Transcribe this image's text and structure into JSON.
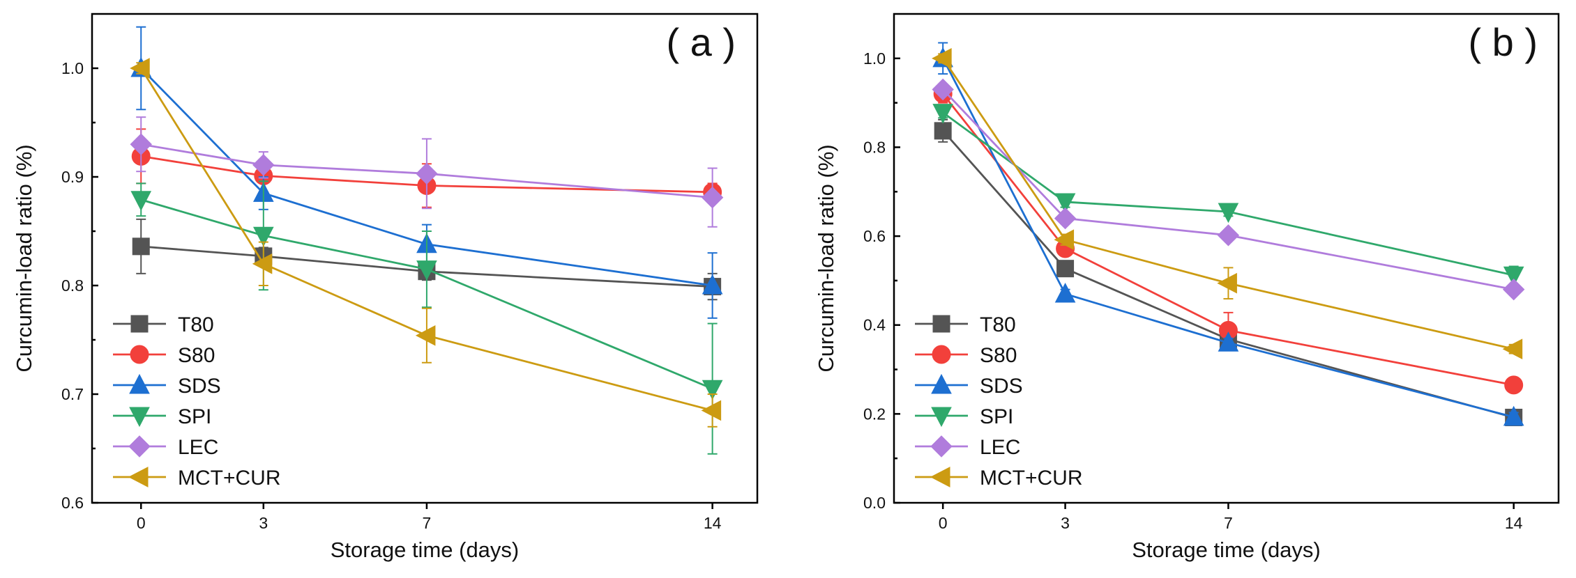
{
  "colors": {
    "T80": "#545454",
    "S80": "#f2403b",
    "SDS": "#1d6fd1",
    "SPI": "#2fa86b",
    "LEC": "#b07cdc",
    "MCT+CUR": "#cc9b12"
  },
  "chart_data": [
    {
      "panel": "( a )",
      "type": "line",
      "xlabel": "Storage time (days)",
      "ylabel": "Curcumin-load ratio (%)",
      "x": [
        0,
        3,
        7,
        14
      ],
      "xticks": [
        "0",
        "3",
        "7",
        "14"
      ],
      "xlim": [
        -1.2,
        15.1
      ],
      "ylim": [
        0.6,
        1.05
      ],
      "yticks": [
        "0.6",
        "0.7",
        "0.8",
        "0.9",
        "1.0"
      ],
      "ytick_values": [
        0.6,
        0.7,
        0.8,
        0.9,
        1.0
      ],
      "legend_position": "bottom-left",
      "series": [
        {
          "name": "T80",
          "marker": "square",
          "values": [
            0.836,
            0.827,
            0.813,
            0.799
          ],
          "errors": [
            0.025,
            0.008,
            0.008,
            0.012
          ]
        },
        {
          "name": "S80",
          "marker": "circle",
          "values": [
            0.919,
            0.901,
            0.892,
            0.886
          ],
          "errors": [
            0.025,
            0.015,
            0.02,
            0.008
          ]
        },
        {
          "name": "SDS",
          "marker": "triangle-up",
          "values": [
            1.0,
            0.885,
            0.838,
            0.8
          ],
          "errors": [
            0.038,
            0.015,
            0.018,
            0.03
          ]
        },
        {
          "name": "SPI",
          "marker": "triangle-down",
          "values": [
            0.879,
            0.846,
            0.815,
            0.705
          ],
          "errors": [
            0.015,
            0.05,
            0.035,
            0.06
          ]
        },
        {
          "name": "LEC",
          "marker": "diamond",
          "values": [
            0.93,
            0.911,
            0.903,
            0.881
          ],
          "errors": [
            0.025,
            0.012,
            0.032,
            0.027
          ]
        },
        {
          "name": "MCT+CUR",
          "marker": "triangle-left",
          "values": [
            1.0,
            0.82,
            0.754,
            0.685
          ],
          "errors": [
            0.005,
            0.02,
            0.025,
            0.015
          ]
        }
      ]
    },
    {
      "panel": "( b )",
      "type": "line",
      "xlabel": "Storage time (days)",
      "ylabel": "Curcumin-load ratio (%)",
      "x": [
        0,
        3,
        7,
        14
      ],
      "xticks": [
        "0",
        "3",
        "7",
        "14"
      ],
      "xlim": [
        -1.2,
        15.1
      ],
      "ylim": [
        0.0,
        1.1
      ],
      "yticks": [
        "0.0",
        "0.2",
        "0.4",
        "0.6",
        "0.8",
        "1.0"
      ],
      "ytick_values": [
        0.0,
        0.2,
        0.4,
        0.6,
        0.8,
        1.0
      ],
      "legend_position": "bottom-left",
      "series": [
        {
          "name": "T80",
          "marker": "square",
          "values": [
            0.837,
            0.527,
            0.368,
            0.192
          ],
          "errors": [
            0.025,
            0.012,
            0.01,
            0.01
          ]
        },
        {
          "name": "S80",
          "marker": "circle",
          "values": [
            0.92,
            0.572,
            0.388,
            0.265
          ],
          "errors": [
            0.02,
            0.012,
            0.04,
            0.01
          ]
        },
        {
          "name": "SDS",
          "marker": "triangle-up",
          "values": [
            1.0,
            0.47,
            0.36,
            0.193
          ],
          "errors": [
            0.035,
            0.01,
            0.01,
            0.01
          ]
        },
        {
          "name": "SPI",
          "marker": "triangle-down",
          "values": [
            0.878,
            0.677,
            0.655,
            0.512
          ],
          "errors": [
            0.012,
            0.012,
            0.01,
            0.02
          ]
        },
        {
          "name": "LEC",
          "marker": "diamond",
          "values": [
            0.93,
            0.64,
            0.602,
            0.48
          ],
          "errors": [
            0.01,
            0.012,
            0.01,
            0.01
          ]
        },
        {
          "name": "MCT+CUR",
          "marker": "triangle-left",
          "values": [
            1.0,
            0.592,
            0.494,
            0.346
          ],
          "errors": [
            0.01,
            0.012,
            0.035,
            0.01
          ]
        }
      ]
    }
  ]
}
